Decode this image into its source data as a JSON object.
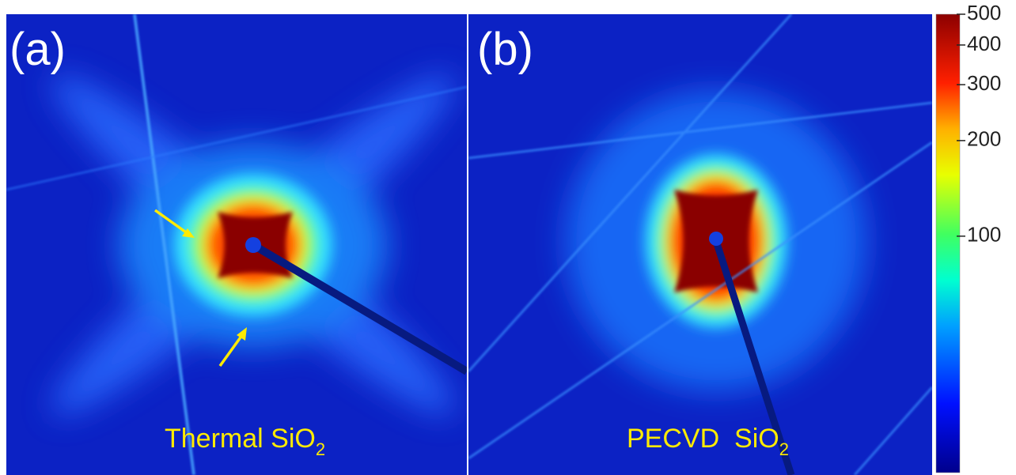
{
  "panels": [
    {
      "label": "(a)",
      "caption": {
        "main": "Thermal SiO",
        "subscript": "2"
      }
    },
    {
      "label": "(b)",
      "caption": {
        "main": "PECVD  SiO",
        "subscript": "2"
      }
    }
  ],
  "colorbar": {
    "clim": [
      18,
      500
    ],
    "ticks": [
      500,
      400,
      300,
      200,
      100
    ],
    "log": true
  }
}
